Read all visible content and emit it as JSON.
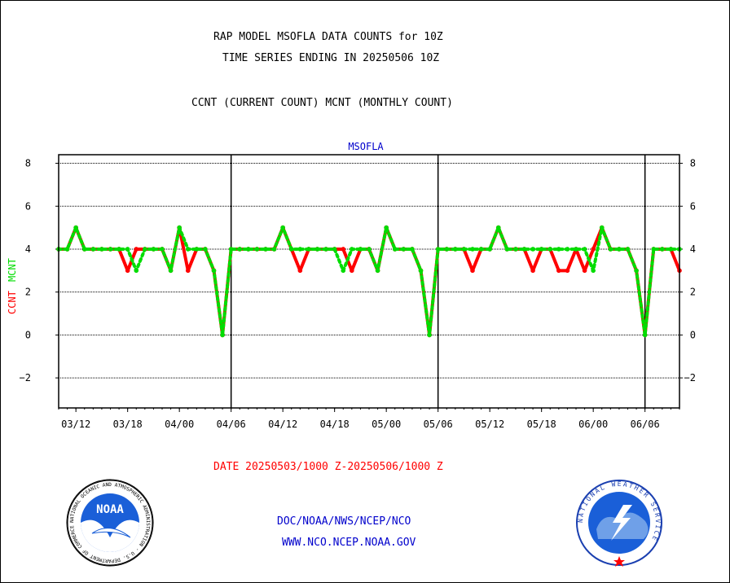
{
  "header": {
    "title1": "RAP MODEL MSOFLA DATA COUNTS for 10Z",
    "title2": "TIME SERIES ENDING IN 20250506 10Z",
    "subtitle": "CCNT (CURRENT COUNT) MCNT (MONTHLY COUNT)"
  },
  "footer": {
    "date_range": "DATE 20250503/1000 Z-20250506/1000 Z",
    "org_path": "DOC/NOAA/NWS/NCEP/NCO",
    "website": "WWW.NCO.NCEP.NOAA.GOV",
    "noaa_logo_text": "NOAA",
    "noaa_seal_ring_text": "NATIONAL OCEANIC AND ATMOSPHERIC ADMINISTRATION · U.S. DEPARTMENT OF COMMERCE",
    "nws_seal_ring_text": "NATIONAL WEATHER SERVICE"
  },
  "colors": {
    "ccnt": "#ff0000",
    "mcnt": "#00dd00",
    "station": "#0000cc",
    "footer_red": "#ff0000",
    "footer_blue": "#0000cc"
  },
  "chart_data": {
    "type": "line",
    "title": "MSOFLA",
    "ylabel_series": [
      "CCNT",
      "MCNT"
    ],
    "ylim": [
      -3.4,
      8.4
    ],
    "yticks": [
      8,
      6,
      4,
      2,
      0,
      -2
    ],
    "ytick_labels": [
      "8",
      "6",
      "4",
      "2",
      "0",
      "−2"
    ],
    "xtick_labels": [
      "03/12",
      "03/18",
      "04/00",
      "04/06",
      "04/12",
      "04/18",
      "05/00",
      "05/06",
      "05/12",
      "05/18",
      "06/00",
      "06/06"
    ],
    "xtick_hours": [
      12,
      18,
      24,
      30,
      36,
      42,
      48,
      54,
      60,
      66,
      72,
      78
    ],
    "day_boundaries_hours": [
      30,
      54,
      78
    ],
    "x_hours_start": 10,
    "x_hours_end": 82,
    "grid": true,
    "series": [
      {
        "name": "CCNT",
        "values": [
          4,
          4,
          5,
          4,
          4,
          4,
          4,
          4,
          3,
          4,
          4,
          4,
          4,
          3,
          5,
          3,
          4,
          4,
          3,
          0,
          4,
          4,
          4,
          4,
          4,
          4,
          5,
          4,
          3,
          4,
          4,
          4,
          4,
          4,
          3,
          4,
          4,
          3,
          5,
          4,
          4,
          4,
          3,
          0,
          4,
          4,
          4,
          4,
          3,
          4,
          4,
          5,
          4,
          4,
          4,
          3,
          4,
          4,
          3,
          3,
          4,
          3,
          4,
          5,
          4,
          4,
          4,
          3,
          0,
          4,
          4,
          4,
          3
        ]
      },
      {
        "name": "MCNT",
        "values": [
          4,
          4,
          5,
          4,
          4,
          4,
          4,
          4,
          4,
          3,
          4,
          4,
          4,
          3,
          5,
          4,
          4,
          4,
          3,
          0,
          4,
          4,
          4,
          4,
          4,
          4,
          5,
          4,
          4,
          4,
          4,
          4,
          4,
          3,
          4,
          4,
          4,
          3,
          5,
          4,
          4,
          4,
          3,
          0,
          4,
          4,
          4,
          4,
          4,
          4,
          4,
          5,
          4,
          4,
          4,
          4,
          4,
          4,
          4,
          4,
          4,
          4,
          3,
          5,
          4,
          4,
          4,
          3,
          0,
          4,
          4,
          4,
          4
        ]
      }
    ]
  }
}
